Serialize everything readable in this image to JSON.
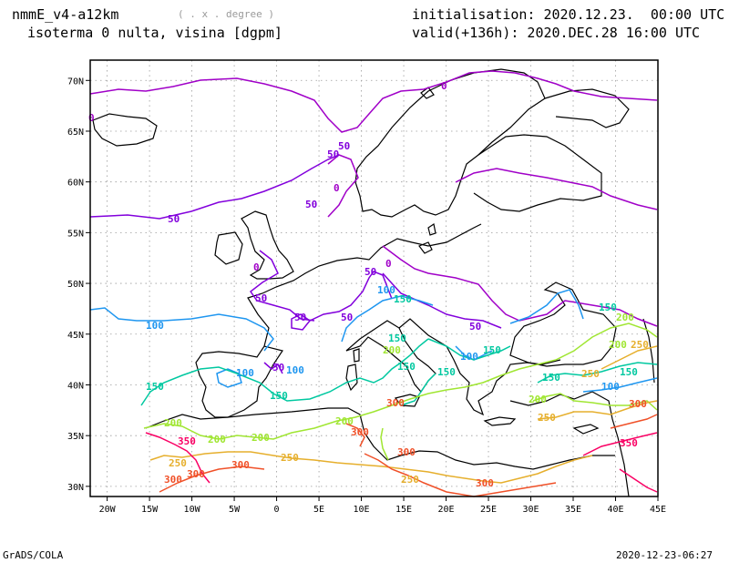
{
  "header": {
    "model": "nmmE_v4-a12km",
    "grid_note": "( . x . degree )",
    "field": "isoterma 0 nulta, visina [dgpm]",
    "init": "initialisation: 2020.12.23.  00:00 UTC",
    "valid": "valid(+136h): 2020.DEC.28 16:00 UTC"
  },
  "footer": {
    "left": "GrADS/COLA",
    "right": "2020-12-23-06:27"
  },
  "map": {
    "lon_range": [
      -22,
      45
    ],
    "lat_range": [
      29,
      72
    ],
    "lon_ticks": [
      {
        "v": -20,
        "t": "20W"
      },
      {
        "v": -15,
        "t": "15W"
      },
      {
        "v": -10,
        "t": "10W"
      },
      {
        "v": -5,
        "t": "5W"
      },
      {
        "v": 0,
        "t": "0"
      },
      {
        "v": 5,
        "t": "5E"
      },
      {
        "v": 10,
        "t": "10E"
      },
      {
        "v": 15,
        "t": "15E"
      },
      {
        "v": 20,
        "t": "20E"
      },
      {
        "v": 25,
        "t": "25E"
      },
      {
        "v": 30,
        "t": "30E"
      },
      {
        "v": 35,
        "t": "35E"
      },
      {
        "v": 40,
        "t": "40E"
      },
      {
        "v": 45,
        "t": "45E"
      }
    ],
    "lat_ticks": [
      {
        "v": 30,
        "t": "30N"
      },
      {
        "v": 35,
        "t": "35N"
      },
      {
        "v": 40,
        "t": "40N"
      },
      {
        "v": 45,
        "t": "45N"
      },
      {
        "v": 50,
        "t": "50N"
      },
      {
        "v": 55,
        "t": "55N"
      },
      {
        "v": 60,
        "t": "60N"
      },
      {
        "v": 65,
        "t": "65N"
      },
      {
        "v": 70,
        "t": "70N"
      }
    ],
    "contour_levels": [
      {
        "level": "0",
        "color": "#a000c8"
      },
      {
        "level": "50",
        "color": "#8200dc"
      },
      {
        "level": "100",
        "color": "#1e96f0"
      },
      {
        "level": "150",
        "color": "#00c8a0"
      },
      {
        "level": "200",
        "color": "#a0e632"
      },
      {
        "level": "250",
        "color": "#e6af2d"
      },
      {
        "level": "300",
        "color": "#f05028"
      },
      {
        "level": "350",
        "color": "#fa0064"
      }
    ]
  }
}
